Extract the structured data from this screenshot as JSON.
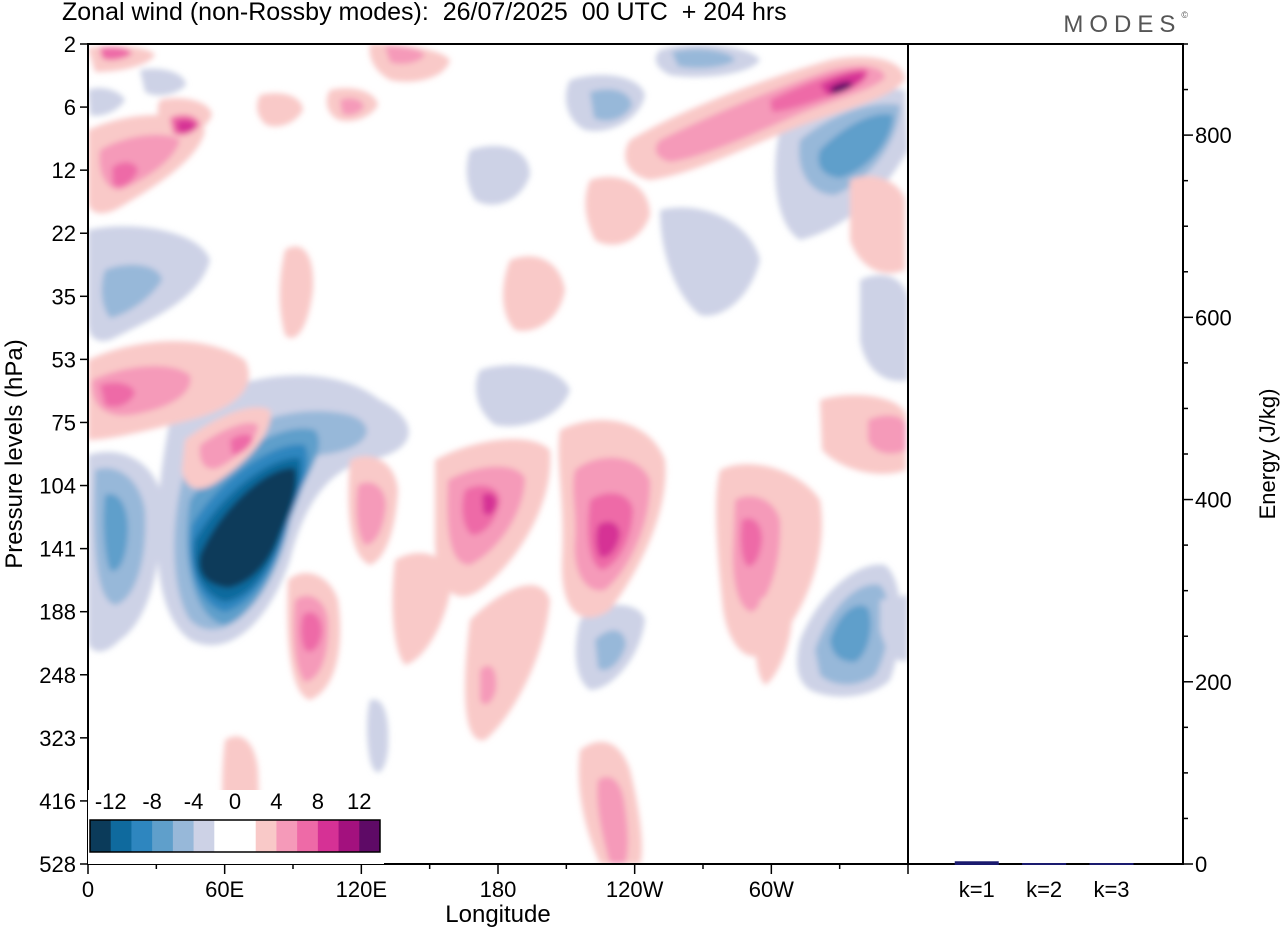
{
  "title": "Zonal wind (non-Rossby modes):  26/07/2025  00 UTC  + 204 hrs",
  "logo": "MODES",
  "logo_mark": "©",
  "chart_data": [
    {
      "type": "heatmap",
      "title": "Zonal wind (non-Rossby modes)",
      "xlabel": "Longitude",
      "ylabel": "Pressure levels (hPa)",
      "x_ticks": [
        "0",
        "60E",
        "120E",
        "180",
        "120W",
        "60W"
      ],
      "x_tick_values": [
        0,
        60,
        120,
        180,
        240,
        300
      ],
      "x_range": [
        0,
        360
      ],
      "y_ticks": [
        "2",
        "6",
        "12",
        "22",
        "35",
        "53",
        "75",
        "104",
        "141",
        "188",
        "248",
        "323",
        "416",
        "528"
      ],
      "colorbar": {
        "labels": [
          "-12",
          "-8",
          "-4",
          "0",
          "4",
          "8",
          "12"
        ],
        "levels": [
          -14,
          -12,
          -10,
          -8,
          -6,
          -4,
          -2,
          0,
          2,
          4,
          6,
          8,
          10,
          12,
          14
        ],
        "colors": [
          "#0b3b5a",
          "#0f6a9e",
          "#2e86bf",
          "#5f9fcb",
          "#97b8d9",
          "#cdd2e6",
          "#ffffff",
          "#ffffff",
          "#f9c9c8",
          "#f59ab9",
          "#ee6aa7",
          "#d63195",
          "#a3117e",
          "#5e0a66"
        ]
      },
      "features": [
        {
          "type": "min",
          "lon": 70,
          "level": "141",
          "value": -14
        },
        {
          "type": "max",
          "lon": 330,
          "level": "6",
          "value": 12
        },
        {
          "type": "max",
          "lon": 228,
          "level": "141",
          "value": 8
        },
        {
          "type": "max",
          "lon": 176,
          "level": "104",
          "value": 8
        },
        {
          "type": "min",
          "lon": 333,
          "level": "12",
          "value": -8
        },
        {
          "type": "min",
          "lon": 335,
          "level": "188",
          "value": -8
        },
        {
          "type": "max",
          "lon": 42,
          "level": "6",
          "value": 10
        }
      ]
    },
    {
      "type": "bar",
      "categories": [
        "k=1",
        "k=2",
        "k=3"
      ],
      "values": [
        3,
        1,
        1
      ],
      "ylabel": "Energy (J/kg)",
      "y_ticks": [
        "0",
        "200",
        "400",
        "600",
        "800"
      ],
      "ylim": [
        0,
        900
      ]
    }
  ]
}
